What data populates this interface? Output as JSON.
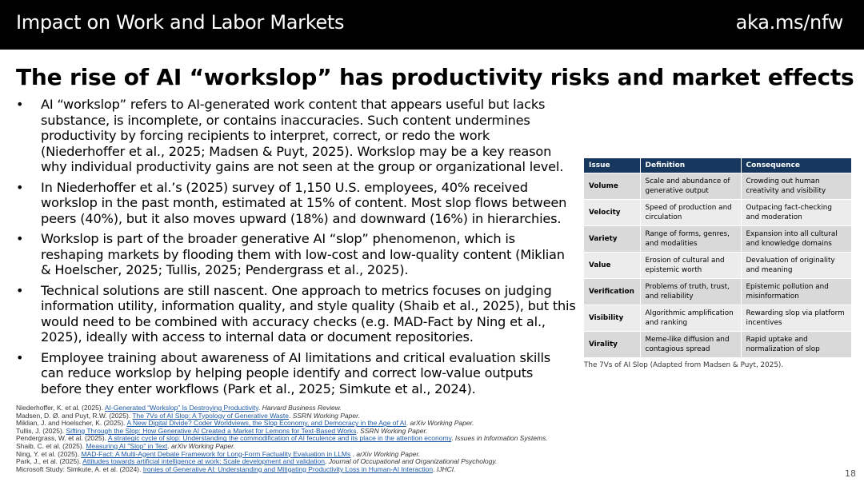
{
  "header": {
    "title": "Impact on Work and Labor Markets",
    "link": "aka.ms/nfw"
  },
  "slide": {
    "title": "The rise of AI “workslop” has productivity risks and market effects"
  },
  "bullets": [
    "AI “workslop” refers to AI-generated work content that appears useful but lacks substance, is incomplete, or contains inaccuracies. Such content undermines productivity by forcing recipients to interpret, correct, or redo the work (Niederhoffer et al., 2025; Madsen & Puyt, 2025). Workslop may be a key reason why individual productivity gains are not seen at the group or organizational level.",
    "In Niederhoffer et al.’s (2025) survey of 1,150 U.S. employees, 40% received workslop in the past month, estimated at 15% of content. Most slop flows between peers (40%), but it also moves upward (18%) and downward (16%) in hierarchies.",
    "Workslop is part of the broader generative AI “slop” phenomenon, which is reshaping markets by flooding them with low-cost and low-quality content (Miklian & Hoelscher, 2025; Tullis, 2025; Pendergrass et al., 2025).",
    "Technical solutions are still nascent. One approach to metrics focuses on judging information utility, information quality, and style quality (Shaib et al., 2025), but this would need to be combined with accuracy checks (e.g. MAD-Fact by Ning et al., 2025), ideally with access to internal data or document repositories.",
    "Employee training about awareness of AI limitations and critical evaluation skills can reduce workslop by helping people identify and correct low-value outputs before they enter workflows (Park et al., 2025; Simkute et al., 2024)."
  ],
  "bullet_marker": "•",
  "table": {
    "headers": [
      "Issue",
      "Definition",
      "Consequence"
    ],
    "rows": [
      [
        "Volume",
        "Scale and abundance of generative output",
        "Crowding out human creativity and visibility"
      ],
      [
        "Velocity",
        "Speed of production and circulation",
        "Outpacing fact-checking and moderation"
      ],
      [
        "Variety",
        "Range of forms, genres, and modalities",
        "Expansion into all cultural and knowledge domains"
      ],
      [
        "Value",
        "Erosion of cultural and epistemic worth",
        "Devaluation of originality and meaning"
      ],
      [
        "Verification",
        "Problems of truth, trust, and reliability",
        "Epistemic pollution and misinformation"
      ],
      [
        "Visibility",
        "Algorithmic amplification and ranking",
        "Rewarding slop via platform incentives"
      ],
      [
        "Virality",
        "Meme-like diffusion and contagious spread",
        "Rapid uptake and normalization of slop"
      ]
    ],
    "caption": "The 7Vs of AI Slop (Adapted from Madsen & Puyt, 2025).",
    "colors": {
      "header_bg": "#17375e",
      "row_bg_a": "#d9d9d9",
      "row_bg_b": "#ececec"
    }
  },
  "references": [
    {
      "pre": "Niederhoffer, K. et al. (2025). ",
      "link": "AI-Generated “Workslop” Is Destroying Productivity",
      "post": ". ",
      "journal": "Harvard Business Review."
    },
    {
      "pre": "Madsen, D. Ø. and Puyt, R.W. (2025). ",
      "link": "The 7Vs of AI Slop: A Typology of Generative Waste",
      "post": ". ",
      "journal": "SSRN Working Paper."
    },
    {
      "pre": "Miklian, J. and Hoelscher, K. (2025). ",
      "link": "A New Digital Divide? Coder Worldviews, the Slop Economy, and Democracy in the Age of AI",
      "post": ". ",
      "journal": "arXiv Working Paper."
    },
    {
      "pre": "Tullis, J. (2025). ",
      "link": "Sifting Through the Slop: How Generative AI Created a Market for Lemons for Text-Based Works",
      "post": ". ",
      "journal": "SSRN Working Paper."
    },
    {
      "pre": "Pendergrass, W. et al. (2025). ",
      "link": "A strategic cycle of slop: Understanding the commodification of AI feculence and its place in the attention economy",
      "post": ". ",
      "journal": "Issues in Information Systems."
    },
    {
      "pre": "Shaib, C. et al. (2025). ",
      "link": "Measuring AI \"Slop\" in Text",
      "post": ". ",
      "journal": "arXiv Working Paper."
    },
    {
      "pre": "Ning, Y. et al. (2025). ",
      "link": "MAD-Fact: A Multi-Agent Debate Framework for Long-Form Factuality Evaluation in LLMs",
      "post": " . ",
      "journal": "arXiv Working Paper."
    },
    {
      "pre": "Park, J., et al. (2025). ",
      "link": "Attitudes towards artificial intelligence at work: Scale development and validation",
      "post": ". ",
      "journal": "Journal of Occupational and Organizational Psychology."
    },
    {
      "pre": "Microsoft Study: Simkute, A. et al. (2024). ",
      "link": "Ironies of Generative AI: Understanding and Mitigating Productivity Loss in Human-AI Interaction",
      "post": ". ",
      "journal": "IJHCI."
    }
  ],
  "page_number": "18"
}
